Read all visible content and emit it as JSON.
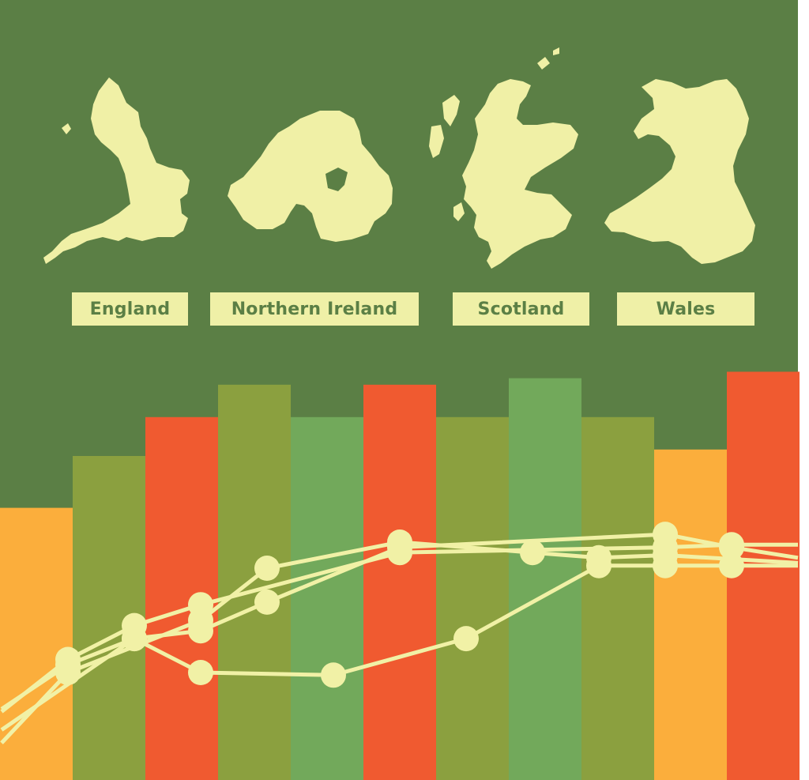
{
  "colors": {
    "background": "#5b7f45",
    "map_fill": "#f0f0a6",
    "label_box": "#eff0a7",
    "label_text": "#5b7f45",
    "orange": "#fbae3c",
    "olive": "#8ba03f",
    "red": "#f05a30",
    "green": "#72a95b",
    "line": "#f1f1a6"
  },
  "regions": [
    {
      "name": "England",
      "icon": "england-map-icon"
    },
    {
      "name": "Northern Ireland",
      "icon": "northern-ireland-map-icon"
    },
    {
      "name": "Scotland",
      "icon": "scotland-map-icon"
    },
    {
      "name": "Wales",
      "icon": "wales-map-icon"
    }
  ],
  "decorative_bars": [
    {
      "value": 42,
      "color": "orange"
    },
    {
      "value": 50,
      "color": "olive"
    },
    {
      "value": 56,
      "color": "red"
    },
    {
      "value": 61,
      "color": "olive"
    },
    {
      "value": 56,
      "color": "green"
    },
    {
      "value": 61,
      "color": "red"
    },
    {
      "value": 56,
      "color": "olive"
    },
    {
      "value": 62,
      "color": "green"
    },
    {
      "value": 56,
      "color": "olive"
    },
    {
      "value": 51,
      "color": "orange"
    },
    {
      "value": 63,
      "color": "red"
    }
  ],
  "decorative_lines": [
    [
      [
        0,
        3
      ],
      [
        1,
        30
      ],
      [
        3,
        50
      ],
      [
        4,
        70
      ],
      [
        6,
        80
      ],
      [
        8,
        76
      ],
      [
        9,
        74
      ],
      [
        10,
        75
      ],
      [
        12,
        72
      ]
    ],
    [
      [
        0,
        8
      ],
      [
        2,
        43
      ],
      [
        3,
        30
      ],
      [
        5,
        29
      ],
      [
        7,
        43
      ],
      [
        9,
        71
      ],
      [
        10,
        71
      ],
      [
        11,
        71
      ],
      [
        12,
        71
      ]
    ],
    [
      [
        0,
        16
      ],
      [
        1,
        33
      ],
      [
        2,
        43
      ],
      [
        3,
        46
      ],
      [
        4,
        57
      ],
      [
        6,
        78
      ],
      [
        10,
        83
      ],
      [
        11,
        78
      ],
      [
        12,
        74
      ]
    ],
    [
      [
        0,
        15
      ],
      [
        1,
        35
      ],
      [
        2,
        48
      ],
      [
        3,
        56
      ],
      [
        6,
        76
      ],
      [
        10,
        78
      ],
      [
        11,
        79
      ],
      [
        12,
        79
      ]
    ]
  ]
}
